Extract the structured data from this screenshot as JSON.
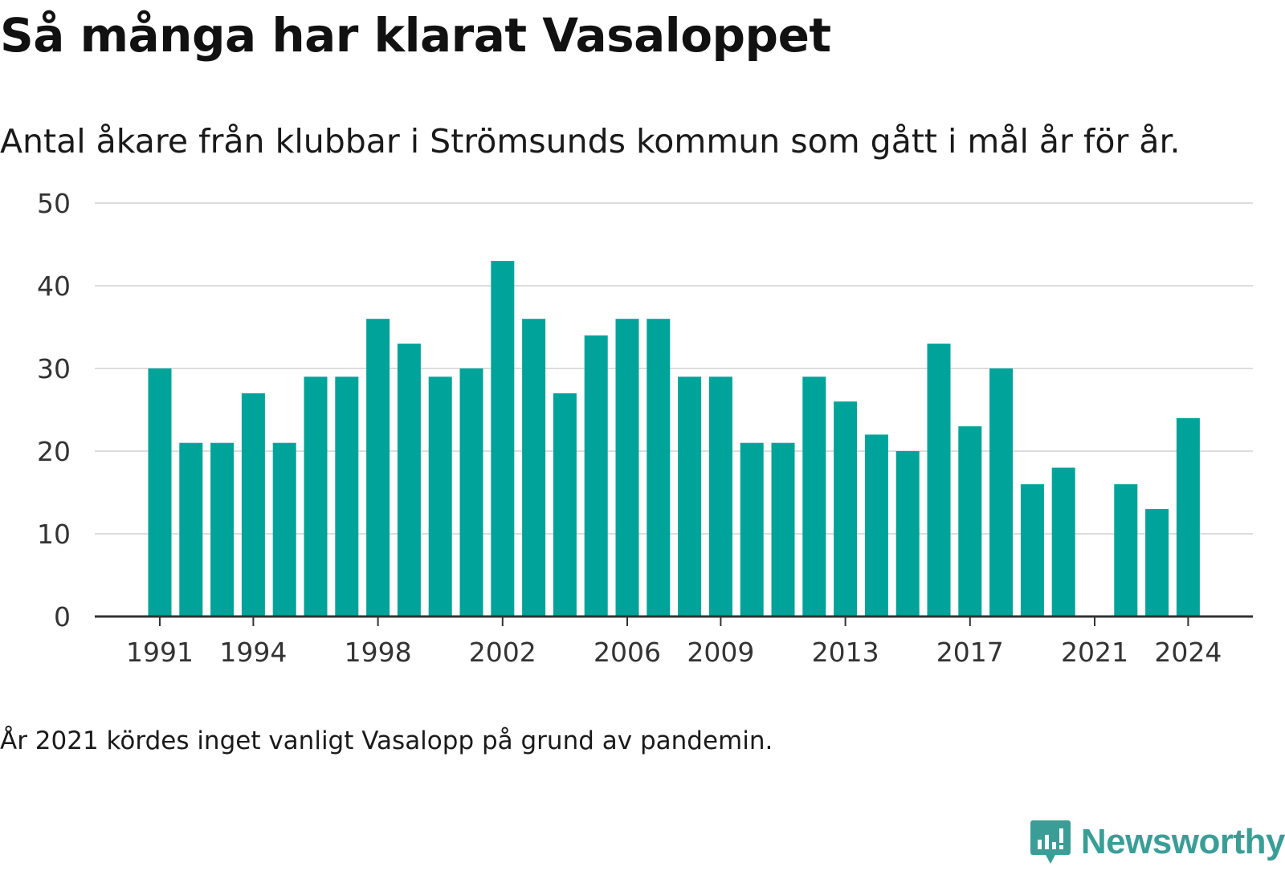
{
  "header": {
    "title": "Så många har klarat Vasaloppet",
    "subtitle": "Antal åkare från klubbar i Strömsunds kommun som gått i mål år för år."
  },
  "footer": {
    "note": "År 2021 kördes inget vanligt Vasalopp på grund av pandemin.",
    "brand": "Newsworthy",
    "brand_icon": "newsworthy-logo-icon"
  },
  "colors": {
    "bar": "#00a39a",
    "grid": "#dddddd",
    "axis": "#333333",
    "brand": "#3a9e97"
  },
  "chart_data": {
    "type": "bar",
    "categories": [
      1991,
      1992,
      1993,
      1994,
      1995,
      1996,
      1997,
      1998,
      1999,
      2000,
      2001,
      2002,
      2003,
      2004,
      2005,
      2006,
      2007,
      2008,
      2009,
      2010,
      2011,
      2012,
      2013,
      2014,
      2015,
      2016,
      2017,
      2018,
      2019,
      2020,
      2021,
      2022,
      2023,
      2024
    ],
    "values": [
      30,
      21,
      21,
      27,
      21,
      29,
      29,
      36,
      33,
      29,
      30,
      43,
      36,
      27,
      34,
      36,
      36,
      29,
      29,
      21,
      21,
      29,
      26,
      22,
      20,
      33,
      23,
      30,
      16,
      18,
      0,
      16,
      13,
      24
    ],
    "x_tick_labels": [
      "1991",
      "1994",
      "1998",
      "2002",
      "2006",
      "2009",
      "2013",
      "2017",
      "2021",
      "2024"
    ],
    "y_ticks": [
      0,
      10,
      20,
      30,
      40,
      50
    ],
    "ylim": [
      0,
      50
    ],
    "grid": true,
    "legend": "none"
  }
}
